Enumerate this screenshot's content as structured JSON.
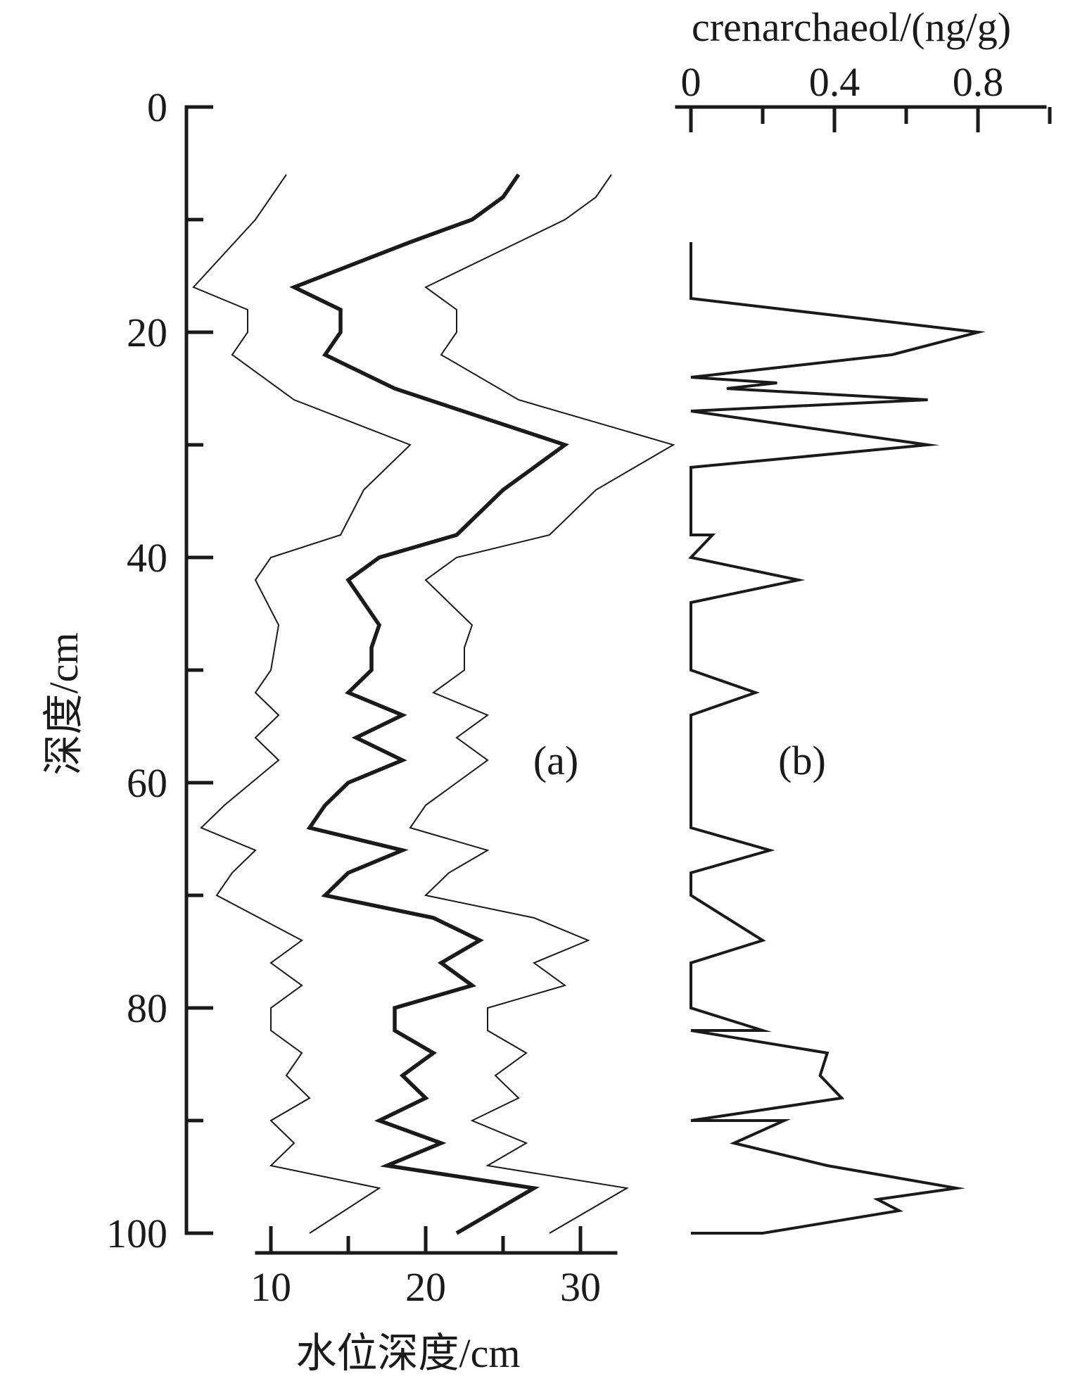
{
  "chart_data": [
    {
      "type": "line",
      "panel_label": "(a)",
      "xlabel": "水位深度/cm",
      "ylabel": "深度/cm",
      "xlim": [
        7.5,
        33.5
      ],
      "ylim": [
        100,
        0
      ],
      "x_ticks": [
        "10",
        "20",
        "30"
      ],
      "y_ticks": [
        "0",
        "20",
        "40",
        "60",
        "80",
        "100"
      ],
      "series": [
        {
          "style": "thin",
          "points": [
            {
              "x": 11.0,
              "y": 6
            },
            {
              "x": 9.0,
              "y": 10
            },
            {
              "x": 5.0,
              "y": 16
            },
            {
              "x": 8.5,
              "y": 18
            },
            {
              "x": 8.5,
              "y": 20
            },
            {
              "x": 7.5,
              "y": 22
            },
            {
              "x": 11.5,
              "y": 26
            },
            {
              "x": 19.0,
              "y": 30
            },
            {
              "x": 16.0,
              "y": 34
            },
            {
              "x": 14.5,
              "y": 38
            },
            {
              "x": 10.0,
              "y": 40
            },
            {
              "x": 9.0,
              "y": 42
            },
            {
              "x": 10.5,
              "y": 46
            },
            {
              "x": 10.0,
              "y": 50
            },
            {
              "x": 9.0,
              "y": 52
            },
            {
              "x": 10.5,
              "y": 54
            },
            {
              "x": 9.0,
              "y": 56
            },
            {
              "x": 10.5,
              "y": 58
            },
            {
              "x": 7.0,
              "y": 62
            },
            {
              "x": 5.5,
              "y": 64
            },
            {
              "x": 9.0,
              "y": 66
            },
            {
              "x": 7.5,
              "y": 68
            },
            {
              "x": 6.5,
              "y": 70
            },
            {
              "x": 12.0,
              "y": 74
            },
            {
              "x": 10.0,
              "y": 76
            },
            {
              "x": 12.0,
              "y": 78
            },
            {
              "x": 10.0,
              "y": 80
            },
            {
              "x": 10.0,
              "y": 82
            },
            {
              "x": 12.0,
              "y": 84
            },
            {
              "x": 11.0,
              "y": 86
            },
            {
              "x": 12.5,
              "y": 88
            },
            {
              "x": 10.0,
              "y": 90
            },
            {
              "x": 11.5,
              "y": 92
            },
            {
              "x": 10.0,
              "y": 94
            },
            {
              "x": 17.0,
              "y": 96
            },
            {
              "x": 12.5,
              "y": 100
            }
          ]
        },
        {
          "style": "thick",
          "points": [
            {
              "x": 26.0,
              "y": 6
            },
            {
              "x": 25.0,
              "y": 8
            },
            {
              "x": 23.0,
              "y": 10
            },
            {
              "x": 19.0,
              "y": 12
            },
            {
              "x": 11.5,
              "y": 16
            },
            {
              "x": 14.5,
              "y": 18
            },
            {
              "x": 14.5,
              "y": 20
            },
            {
              "x": 13.5,
              "y": 22
            },
            {
              "x": 18.0,
              "y": 25
            },
            {
              "x": 29.0,
              "y": 30
            },
            {
              "x": 25.0,
              "y": 34
            },
            {
              "x": 22.0,
              "y": 38
            },
            {
              "x": 17.0,
              "y": 40
            },
            {
              "x": 15.0,
              "y": 42
            },
            {
              "x": 17.0,
              "y": 46
            },
            {
              "x": 16.5,
              "y": 48
            },
            {
              "x": 16.5,
              "y": 50
            },
            {
              "x": 15.0,
              "y": 52
            },
            {
              "x": 18.5,
              "y": 54
            },
            {
              "x": 15.5,
              "y": 56
            },
            {
              "x": 18.5,
              "y": 58
            },
            {
              "x": 15.0,
              "y": 60
            },
            {
              "x": 13.5,
              "y": 62
            },
            {
              "x": 12.5,
              "y": 64
            },
            {
              "x": 18.5,
              "y": 66
            },
            {
              "x": 15.0,
              "y": 68
            },
            {
              "x": 13.5,
              "y": 70
            },
            {
              "x": 20.5,
              "y": 72
            },
            {
              "x": 23.5,
              "y": 74
            },
            {
              "x": 21.0,
              "y": 76
            },
            {
              "x": 23.0,
              "y": 78
            },
            {
              "x": 18.0,
              "y": 80
            },
            {
              "x": 18.0,
              "y": 82
            },
            {
              "x": 20.5,
              "y": 84
            },
            {
              "x": 18.5,
              "y": 86
            },
            {
              "x": 20.0,
              "y": 88
            },
            {
              "x": 17.0,
              "y": 90
            },
            {
              "x": 21.0,
              "y": 92
            },
            {
              "x": 17.5,
              "y": 94
            },
            {
              "x": 27.0,
              "y": 96
            },
            {
              "x": 22.0,
              "y": 100
            }
          ]
        },
        {
          "style": "thin",
          "points": [
            {
              "x": 32.0,
              "y": 6
            },
            {
              "x": 31.0,
              "y": 8
            },
            {
              "x": 29.0,
              "y": 10
            },
            {
              "x": 26.0,
              "y": 12
            },
            {
              "x": 20.0,
              "y": 16
            },
            {
              "x": 22.0,
              "y": 18
            },
            {
              "x": 22.0,
              "y": 20
            },
            {
              "x": 21.0,
              "y": 22
            },
            {
              "x": 26.0,
              "y": 26
            },
            {
              "x": 36.0,
              "y": 30
            },
            {
              "x": 31.0,
              "y": 34
            },
            {
              "x": 28.0,
              "y": 38
            },
            {
              "x": 22.0,
              "y": 40
            },
            {
              "x": 20.0,
              "y": 42
            },
            {
              "x": 23.0,
              "y": 46
            },
            {
              "x": 22.5,
              "y": 48
            },
            {
              "x": 22.5,
              "y": 50
            },
            {
              "x": 20.5,
              "y": 52
            },
            {
              "x": 24.0,
              "y": 54
            },
            {
              "x": 22.0,
              "y": 56
            },
            {
              "x": 24.0,
              "y": 58
            },
            {
              "x": 22.0,
              "y": 60
            },
            {
              "x": 20.0,
              "y": 62
            },
            {
              "x": 19.0,
              "y": 64
            },
            {
              "x": 24.0,
              "y": 66
            },
            {
              "x": 21.5,
              "y": 68
            },
            {
              "x": 20.0,
              "y": 70
            },
            {
              "x": 27.0,
              "y": 72
            },
            {
              "x": 30.5,
              "y": 74
            },
            {
              "x": 27.0,
              "y": 76
            },
            {
              "x": 29.0,
              "y": 78
            },
            {
              "x": 24.0,
              "y": 80
            },
            {
              "x": 24.0,
              "y": 82
            },
            {
              "x": 26.5,
              "y": 84
            },
            {
              "x": 24.5,
              "y": 86
            },
            {
              "x": 26.0,
              "y": 88
            },
            {
              "x": 23.0,
              "y": 90
            },
            {
              "x": 26.5,
              "y": 92
            },
            {
              "x": 24.0,
              "y": 94
            },
            {
              "x": 33.0,
              "y": 96
            },
            {
              "x": 28.0,
              "y": 100
            }
          ]
        }
      ]
    },
    {
      "type": "line",
      "panel_label": "(b)",
      "xlabel": "crenarchaeol/(ng/g)",
      "ylabel": "",
      "xlim": [
        0,
        1.0
      ],
      "ylim": [
        100,
        0
      ],
      "x_ticks": [
        "0",
        "0.4",
        "0.8"
      ],
      "series": [
        {
          "style": "medium",
          "points": [
            {
              "x": 0.0,
              "y": 12
            },
            {
              "x": 0.0,
              "y": 17
            },
            {
              "x": 0.8,
              "y": 20
            },
            {
              "x": 0.56,
              "y": 22
            },
            {
              "x": 0.0,
              "y": 24
            },
            {
              "x": 0.24,
              "y": 24.5
            },
            {
              "x": 0.1,
              "y": 25
            },
            {
              "x": 0.66,
              "y": 26
            },
            {
              "x": 0.0,
              "y": 27
            },
            {
              "x": 0.66,
              "y": 30
            },
            {
              "x": 0.0,
              "y": 32
            },
            {
              "x": 0.0,
              "y": 38
            },
            {
              "x": 0.06,
              "y": 38
            },
            {
              "x": 0.0,
              "y": 40
            },
            {
              "x": 0.3,
              "y": 42
            },
            {
              "x": 0.0,
              "y": 44
            },
            {
              "x": 0.0,
              "y": 50
            },
            {
              "x": 0.18,
              "y": 52
            },
            {
              "x": 0.0,
              "y": 54
            },
            {
              "x": 0.0,
              "y": 64
            },
            {
              "x": 0.22,
              "y": 66
            },
            {
              "x": 0.0,
              "y": 68
            },
            {
              "x": 0.0,
              "y": 70
            },
            {
              "x": 0.2,
              "y": 74
            },
            {
              "x": 0.0,
              "y": 76
            },
            {
              "x": 0.0,
              "y": 80
            },
            {
              "x": 0.2,
              "y": 82
            },
            {
              "x": 0.0,
              "y": 82
            },
            {
              "x": 0.38,
              "y": 84
            },
            {
              "x": 0.36,
              "y": 86
            },
            {
              "x": 0.42,
              "y": 88
            },
            {
              "x": 0.0,
              "y": 90
            },
            {
              "x": 0.26,
              "y": 90
            },
            {
              "x": 0.12,
              "y": 92
            },
            {
              "x": 0.38,
              "y": 94
            },
            {
              "x": 0.74,
              "y": 96
            },
            {
              "x": 0.52,
              "y": 97
            },
            {
              "x": 0.58,
              "y": 98
            },
            {
              "x": 0.2,
              "y": 100
            },
            {
              "x": 0.0,
              "y": 100
            }
          ]
        }
      ]
    }
  ]
}
